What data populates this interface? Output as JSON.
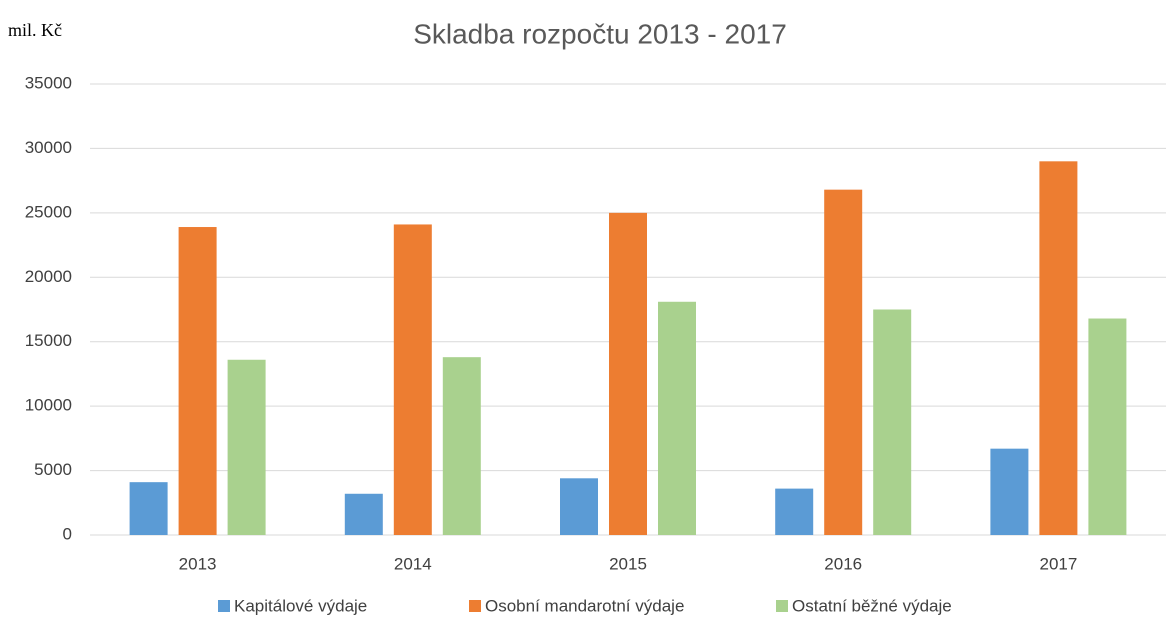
{
  "chart_data": {
    "type": "bar",
    "title": "Skladba rozpočtu 2013 - 2017",
    "y_label": "mil. Kč",
    "categories": [
      "2013",
      "2014",
      "2015",
      "2016",
      "2017"
    ],
    "series": [
      {
        "name": "Kapitálové výdaje",
        "color": "#5b9bd5",
        "values": [
          4100,
          3200,
          4400,
          3600,
          6700
        ]
      },
      {
        "name": "Osobní mandarotní výdaje",
        "color": "#ed7d31",
        "values": [
          23900,
          24100,
          25000,
          26800,
          29000
        ]
      },
      {
        "name": "Ostatní běžné výdaje",
        "color": "#a9d18e",
        "values": [
          13600,
          13800,
          18100,
          17500,
          16800
        ]
      }
    ],
    "ylim": [
      0,
      35000
    ],
    "yticks": [
      0,
      5000,
      10000,
      15000,
      20000,
      25000,
      30000,
      35000
    ],
    "grid": true,
    "legend": "bottom"
  }
}
